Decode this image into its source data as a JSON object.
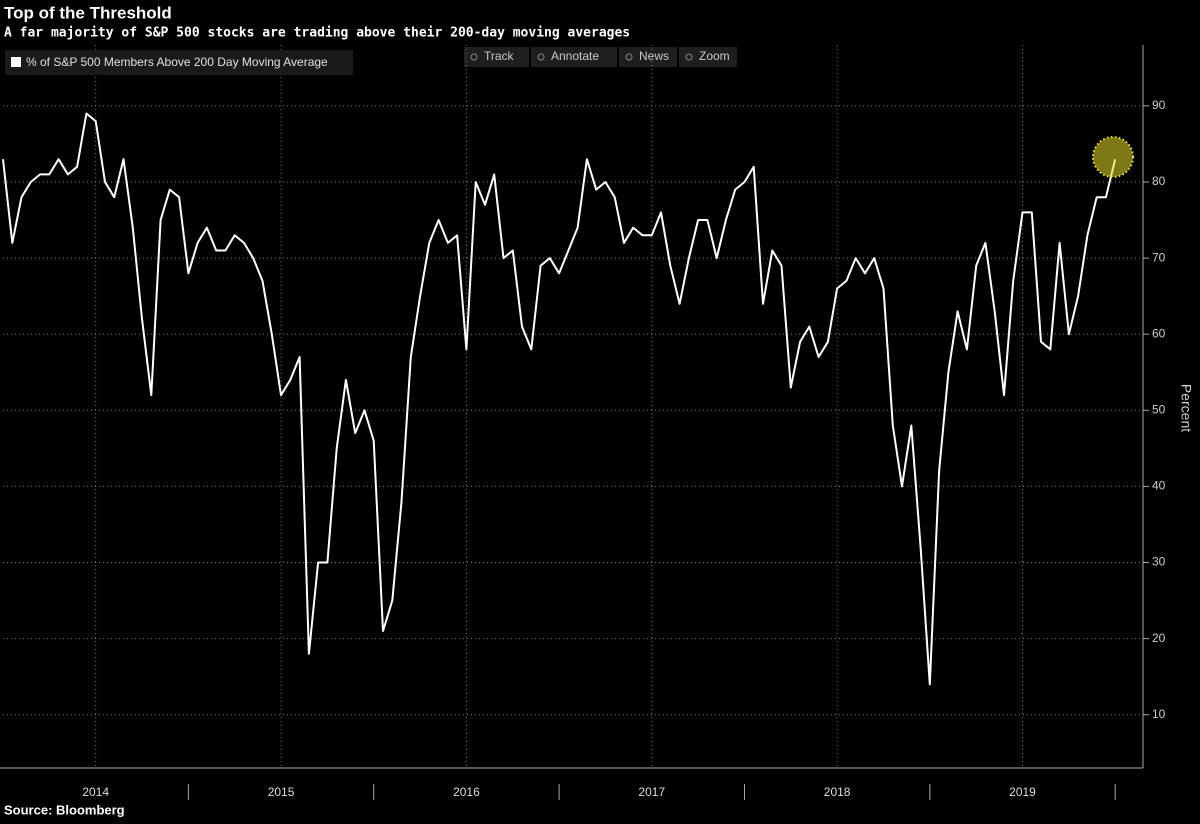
{
  "chart_data": {
    "type": "line",
    "title": "Top of the Threshold",
    "subtitle": "A far majority of S&P 500 stocks are trading above their 200-day moving averages",
    "source": "Source: Bloomberg",
    "ylabel": "Percent",
    "toolbar": [
      "Track",
      "Annotate",
      "News",
      "Zoom"
    ],
    "grid": true,
    "legend": "top-left",
    "xlim": [
      2014.0,
      2020.15
    ],
    "ylim": [
      3,
      98
    ],
    "xticks": [
      {
        "value": 2014.5,
        "label": "2014"
      },
      {
        "value": 2015.5,
        "label": "2015"
      },
      {
        "value": 2016.5,
        "label": "2016"
      },
      {
        "value": 2017.5,
        "label": "2017"
      },
      {
        "value": 2018.5,
        "label": "2018"
      },
      {
        "value": 2019.5,
        "label": "2019"
      }
    ],
    "yticks": [
      10,
      20,
      30,
      40,
      50,
      60,
      70,
      80,
      90
    ],
    "x": [
      2014.0,
      2014.05,
      2014.1,
      2014.15,
      2014.2,
      2014.25,
      2014.3,
      2014.35,
      2014.4,
      2014.45,
      2014.5,
      2014.55,
      2014.6,
      2014.65,
      2014.7,
      2014.75,
      2014.8,
      2014.85,
      2014.9,
      2014.95,
      2015.0,
      2015.05,
      2015.1,
      2015.15,
      2015.2,
      2015.25,
      2015.3,
      2015.35,
      2015.4,
      2015.45,
      2015.5,
      2015.55,
      2015.6,
      2015.65,
      2015.7,
      2015.75,
      2015.8,
      2015.85,
      2015.9,
      2015.95,
      2016.0,
      2016.05,
      2016.1,
      2016.15,
      2016.2,
      2016.25,
      2016.3,
      2016.35,
      2016.4,
      2016.45,
      2016.5,
      2016.55,
      2016.6,
      2016.65,
      2016.7,
      2016.75,
      2016.8,
      2016.85,
      2016.9,
      2016.95,
      2017.0,
      2017.05,
      2017.1,
      2017.15,
      2017.2,
      2017.25,
      2017.3,
      2017.35,
      2017.4,
      2017.45,
      2017.5,
      2017.55,
      2017.6,
      2017.65,
      2017.7,
      2017.75,
      2017.8,
      2017.85,
      2017.9,
      2017.95,
      2018.0,
      2018.05,
      2018.1,
      2018.15,
      2018.2,
      2018.25,
      2018.3,
      2018.35,
      2018.4,
      2018.45,
      2018.5,
      2018.55,
      2018.6,
      2018.65,
      2018.7,
      2018.75,
      2018.8,
      2018.85,
      2018.9,
      2018.95,
      2019.0,
      2019.05,
      2019.1,
      2019.15,
      2019.2,
      2019.25,
      2019.3,
      2019.35,
      2019.4,
      2019.45,
      2019.5,
      2019.55,
      2019.6,
      2019.65,
      2019.7,
      2019.75,
      2019.8,
      2019.85,
      2019.9,
      2019.95,
      2020.0
    ],
    "series": [
      {
        "name": "% of S&P 500 Members Above 200 Day Moving Average",
        "color": "#ffffff",
        "values": [
          83,
          72,
          78,
          80,
          81,
          81,
          83,
          81,
          82,
          89,
          88,
          80,
          78,
          83,
          74,
          62,
          52,
          75,
          79,
          78,
          68,
          72,
          74,
          71,
          71,
          73,
          72,
          70,
          67,
          60,
          52,
          54,
          57,
          18,
          30,
          30,
          45,
          54,
          47,
          50,
          46,
          21,
          25,
          38,
          57,
          65,
          72,
          75,
          72,
          73,
          58,
          80,
          77,
          81,
          70,
          71,
          61,
          58,
          69,
          70,
          68,
          71,
          74,
          83,
          79,
          80,
          78,
          72,
          74,
          73,
          73,
          76,
          69,
          64,
          70,
          75,
          75,
          70,
          75,
          79,
          80,
          82,
          64,
          71,
          69,
          53,
          59,
          61,
          57,
          59,
          66,
          67,
          70,
          68,
          70,
          66,
          48,
          40,
          48,
          32,
          14,
          42,
          55,
          63,
          58,
          69,
          72,
          63,
          52,
          67,
          76,
          76,
          59,
          58,
          72,
          60,
          65,
          73,
          78,
          78,
          83
        ]
      }
    ]
  }
}
